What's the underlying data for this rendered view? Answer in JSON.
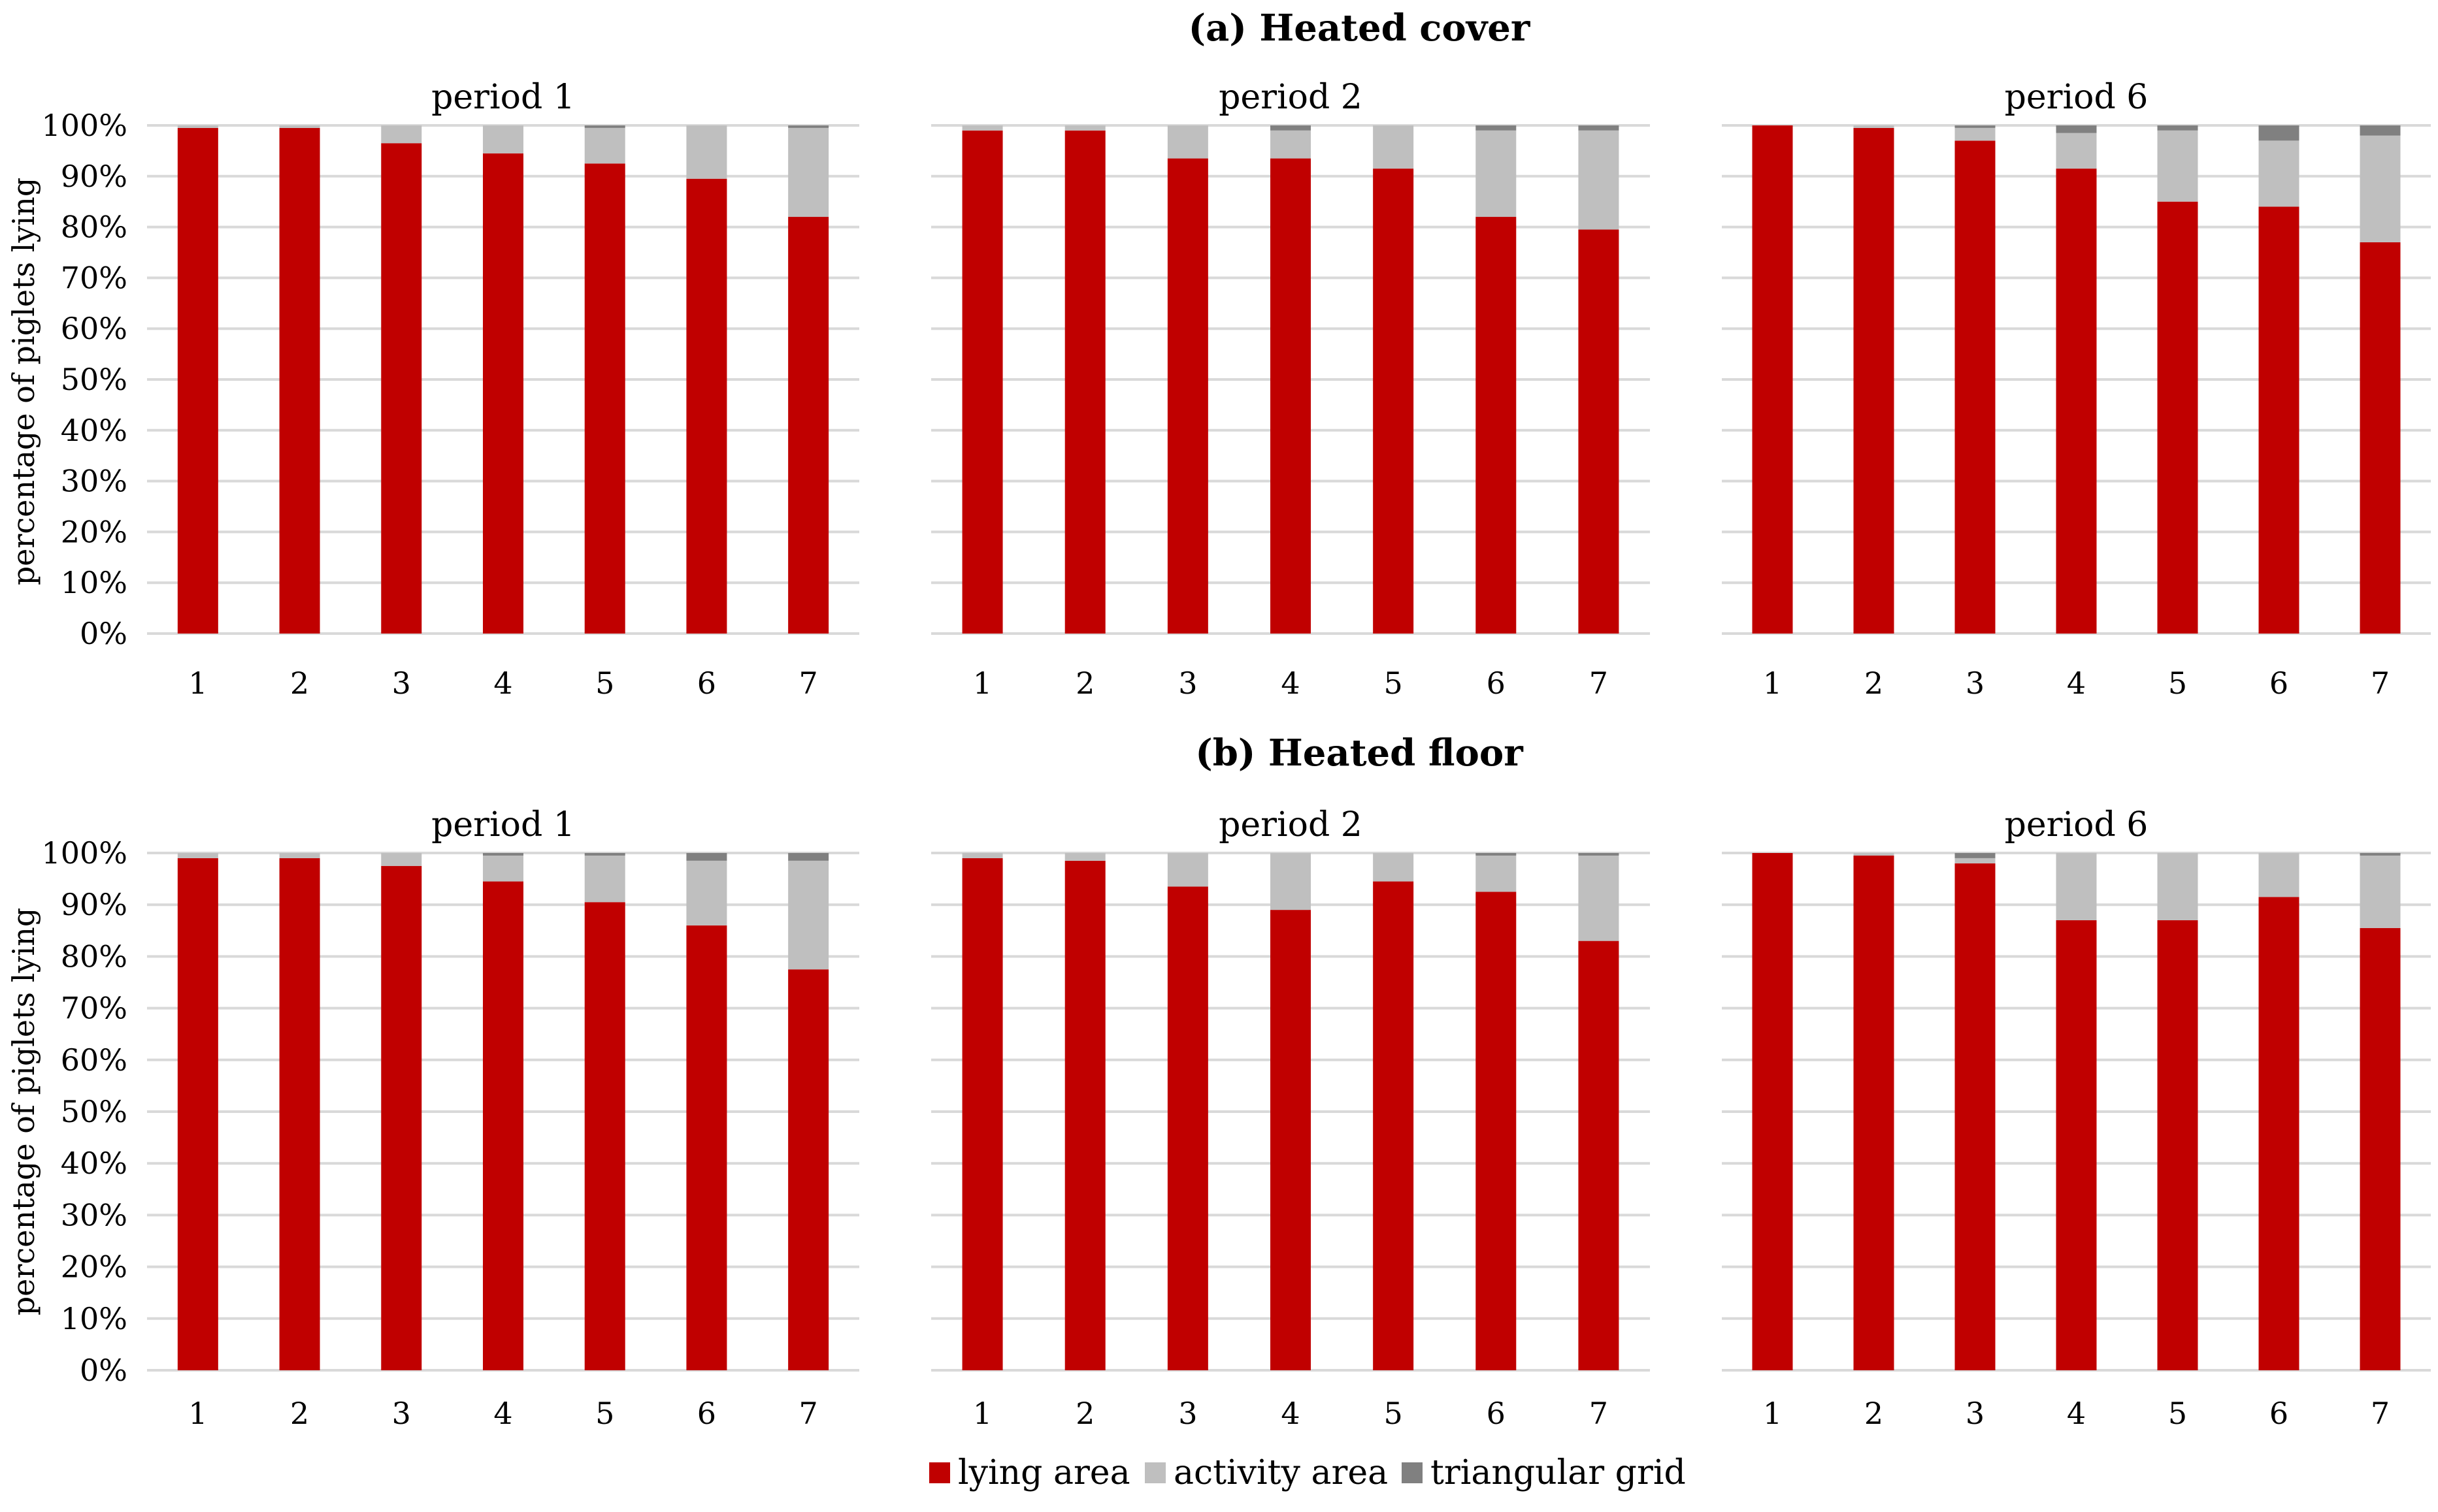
{
  "figure": {
    "sections": [
      "(a) Heated cover",
      "(b) Heated floor"
    ]
  },
  "legend": [
    {
      "label": "lying area",
      "color": "#c00000"
    },
    {
      "label": "activity area",
      "color": "#bfbfbf"
    },
    {
      "label": "triangular grid",
      "color": "#808080"
    }
  ],
  "chart_data": [
    {
      "type": "bar",
      "stacked": true,
      "section": "(a) Heated cover",
      "title": "period 1",
      "ylabel": "percentage of piglets lying",
      "ylim": [
        0,
        100
      ],
      "yticks": [
        "0%",
        "10%",
        "20%",
        "30%",
        "40%",
        "50%",
        "60%",
        "70%",
        "80%",
        "90%",
        "100%"
      ],
      "categories": [
        "1",
        "2",
        "3",
        "4",
        "5",
        "6",
        "7"
      ],
      "grid": true,
      "series": [
        {
          "name": "lying area",
          "values": [
            99.5,
            99.5,
            96.5,
            94.5,
            92.5,
            89.5,
            82
          ]
        },
        {
          "name": "activity area",
          "values": [
            0.5,
            0.5,
            3.5,
            5.5,
            7,
            10.5,
            17.5
          ]
        },
        {
          "name": "triangular grid",
          "values": [
            0,
            0,
            0,
            0,
            0.5,
            0,
            0.5
          ]
        }
      ]
    },
    {
      "type": "bar",
      "stacked": true,
      "section": "(a) Heated cover",
      "title": "period 2",
      "ylim": [
        0,
        100
      ],
      "categories": [
        "1",
        "2",
        "3",
        "4",
        "5",
        "6",
        "7"
      ],
      "grid": true,
      "series": [
        {
          "name": "lying area",
          "values": [
            99,
            99,
            93.5,
            93.5,
            91.5,
            82,
            79.5
          ]
        },
        {
          "name": "activity area",
          "values": [
            1,
            1,
            6.5,
            5.5,
            8.5,
            17,
            19.5
          ]
        },
        {
          "name": "triangular grid",
          "values": [
            0,
            0,
            0,
            1,
            0,
            1,
            1
          ]
        }
      ]
    },
    {
      "type": "bar",
      "stacked": true,
      "section": "(a) Heated cover",
      "title": "period 6",
      "ylim": [
        0,
        100
      ],
      "categories": [
        "1",
        "2",
        "3",
        "4",
        "5",
        "6",
        "7"
      ],
      "grid": true,
      "series": [
        {
          "name": "lying area",
          "values": [
            100,
            99.5,
            97,
            91.5,
            85,
            84,
            77
          ]
        },
        {
          "name": "activity area",
          "values": [
            0,
            0.5,
            2.5,
            7,
            14,
            13,
            21
          ]
        },
        {
          "name": "triangular grid",
          "values": [
            0,
            0,
            0.5,
            1.5,
            1,
            3,
            2
          ]
        }
      ]
    },
    {
      "type": "bar",
      "stacked": true,
      "section": "(b) Heated floor",
      "title": "period 1",
      "ylabel": "percentage of piglets lying",
      "ylim": [
        0,
        100
      ],
      "yticks": [
        "0%",
        "10%",
        "20%",
        "30%",
        "40%",
        "50%",
        "60%",
        "70%",
        "80%",
        "90%",
        "100%"
      ],
      "categories": [
        "1",
        "2",
        "3",
        "4",
        "5",
        "6",
        "7"
      ],
      "grid": true,
      "series": [
        {
          "name": "lying area",
          "values": [
            99,
            99,
            97.5,
            94.5,
            90.5,
            86,
            77.5
          ]
        },
        {
          "name": "activity area",
          "values": [
            1,
            1,
            2.5,
            5,
            9,
            12.5,
            21
          ]
        },
        {
          "name": "triangular grid",
          "values": [
            0,
            0,
            0,
            0.5,
            0.5,
            1.5,
            1.5
          ]
        }
      ]
    },
    {
      "type": "bar",
      "stacked": true,
      "section": "(b) Heated floor",
      "title": "period 2",
      "ylim": [
        0,
        100
      ],
      "categories": [
        "1",
        "2",
        "3",
        "4",
        "5",
        "6",
        "7"
      ],
      "grid": true,
      "series": [
        {
          "name": "lying area",
          "values": [
            99,
            98.5,
            93.5,
            89,
            94.5,
            92.5,
            83
          ]
        },
        {
          "name": "activity area",
          "values": [
            1,
            1.5,
            6.5,
            11,
            5.5,
            7,
            16.5
          ]
        },
        {
          "name": "triangular grid",
          "values": [
            0,
            0,
            0,
            0,
            0,
            0.5,
            0.5
          ]
        }
      ]
    },
    {
      "type": "bar",
      "stacked": true,
      "section": "(b) Heated floor",
      "title": "period 6",
      "ylim": [
        0,
        100
      ],
      "categories": [
        "1",
        "2",
        "3",
        "4",
        "5",
        "6",
        "7"
      ],
      "grid": true,
      "series": [
        {
          "name": "lying area",
          "values": [
            100,
            99.5,
            98,
            87,
            87,
            91.5,
            85.5
          ]
        },
        {
          "name": "activity area",
          "values": [
            0,
            0.5,
            1,
            13,
            13,
            8.5,
            14
          ]
        },
        {
          "name": "triangular grid",
          "values": [
            0,
            0,
            1,
            0,
            0,
            0,
            0.5
          ]
        }
      ]
    }
  ]
}
